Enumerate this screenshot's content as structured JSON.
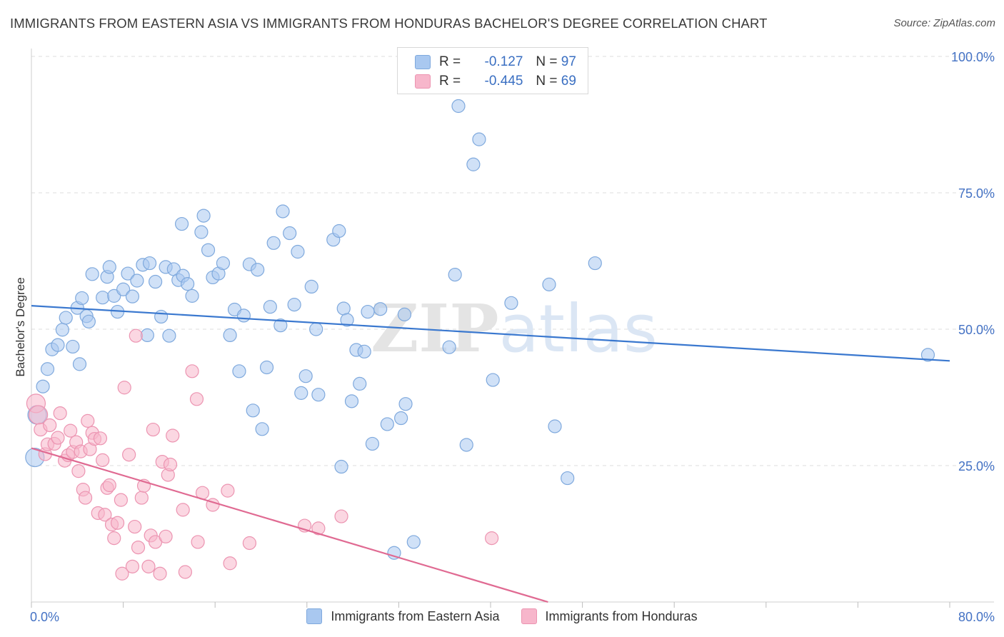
{
  "title": "IMMIGRANTS FROM EASTERN ASIA VS IMMIGRANTS FROM HONDURAS BACHELOR'S DEGREE CORRELATION CHART",
  "source": "Source: ZipAtlas.com",
  "watermark": "ZIPatlas",
  "legend_top": [
    {
      "r_label": "R =",
      "r_value": "-0.127",
      "n_label": "N =",
      "n_value": "97",
      "color": "#a9c8f0"
    },
    {
      "r_label": "R =",
      "r_value": "-0.445",
      "n_label": "N =",
      "n_value": "69",
      "color": "#f7b6cb"
    }
  ],
  "chart_data": {
    "type": "scatter",
    "ylabel": "Bachelor's Degree",
    "x_tick_labels": [
      "0.0%",
      "80.0%"
    ],
    "y_tick_labels": [
      "100.0%",
      "75.0%",
      "50.0%",
      "25.0%"
    ],
    "xlim": [
      0,
      80
    ],
    "ylim": [
      0,
      100
    ],
    "grid": "horizontal dashed",
    "series": [
      {
        "name": "Immigrants from Eastern Asia",
        "color": "#a9c8f0",
        "stroke": "#7fa9dd",
        "trend_color": "#3a78cf",
        "trend": {
          "x": [
            0,
            80
          ],
          "y": [
            54.3,
            44.2
          ]
        },
        "points": [
          [
            0.3,
            26.5
          ],
          [
            0.5,
            34.3
          ],
          [
            1.0,
            39.5
          ],
          [
            1.4,
            42.7
          ],
          [
            1.8,
            46.3
          ],
          [
            2.3,
            47.1
          ],
          [
            2.7,
            49.9
          ],
          [
            3.0,
            52.1
          ],
          [
            3.6,
            46.8
          ],
          [
            4.0,
            53.9
          ],
          [
            4.2,
            43.6
          ],
          [
            4.4,
            55.7
          ],
          [
            4.8,
            52.4
          ],
          [
            5.0,
            51.4
          ],
          [
            5.3,
            60.1
          ],
          [
            6.2,
            55.8
          ],
          [
            6.6,
            59.6
          ],
          [
            6.8,
            61.4
          ],
          [
            7.2,
            56.1
          ],
          [
            7.5,
            53.2
          ],
          [
            8.0,
            57.3
          ],
          [
            8.4,
            60.2
          ],
          [
            8.8,
            56.0
          ],
          [
            9.2,
            58.9
          ],
          [
            9.7,
            61.8
          ],
          [
            10.1,
            48.9
          ],
          [
            10.3,
            62.1
          ],
          [
            10.8,
            58.7
          ],
          [
            11.3,
            52.3
          ],
          [
            11.7,
            61.4
          ],
          [
            12.0,
            48.8
          ],
          [
            12.4,
            61.0
          ],
          [
            12.8,
            59.0
          ],
          [
            13.2,
            59.8
          ],
          [
            13.6,
            58.3
          ],
          [
            14.0,
            56.1
          ],
          [
            13.1,
            69.3
          ],
          [
            14.8,
            67.8
          ],
          [
            15.0,
            70.8
          ],
          [
            15.4,
            64.5
          ],
          [
            15.8,
            59.5
          ],
          [
            16.3,
            60.2
          ],
          [
            16.7,
            62.1
          ],
          [
            17.3,
            48.9
          ],
          [
            17.7,
            53.6
          ],
          [
            18.1,
            42.3
          ],
          [
            18.5,
            52.5
          ],
          [
            19.0,
            61.9
          ],
          [
            19.3,
            35.1
          ],
          [
            19.7,
            60.9
          ],
          [
            20.1,
            31.7
          ],
          [
            20.5,
            43.0
          ],
          [
            20.8,
            54.1
          ],
          [
            21.1,
            65.8
          ],
          [
            21.7,
            50.7
          ],
          [
            21.9,
            71.6
          ],
          [
            22.5,
            67.6
          ],
          [
            22.9,
            54.5
          ],
          [
            23.2,
            64.2
          ],
          [
            23.5,
            38.3
          ],
          [
            23.9,
            41.4
          ],
          [
            24.4,
            57.8
          ],
          [
            24.8,
            50.0
          ],
          [
            25.0,
            38.0
          ],
          [
            26.3,
            66.4
          ],
          [
            26.8,
            68.0
          ],
          [
            27.2,
            53.8
          ],
          [
            27.5,
            51.7
          ],
          [
            27.9,
            36.8
          ],
          [
            28.3,
            46.2
          ],
          [
            28.6,
            40.0
          ],
          [
            29.0,
            45.9
          ],
          [
            29.3,
            53.2
          ],
          [
            29.7,
            29.0
          ],
          [
            30.4,
            53.7
          ],
          [
            31.0,
            32.6
          ],
          [
            31.6,
            9.0
          ],
          [
            32.2,
            33.7
          ],
          [
            32.5,
            52.7
          ],
          [
            32.6,
            36.3
          ],
          [
            33.3,
            11.0
          ],
          [
            36.4,
            46.7
          ],
          [
            36.9,
            60.0
          ],
          [
            37.2,
            90.9
          ],
          [
            27.0,
            24.8
          ],
          [
            37.9,
            28.8
          ],
          [
            38.5,
            80.2
          ],
          [
            39.0,
            84.8
          ],
          [
            40.2,
            40.7
          ],
          [
            41.8,
            54.8
          ],
          [
            45.1,
            58.2
          ],
          [
            45.6,
            32.2
          ],
          [
            46.7,
            22.7
          ],
          [
            49.1,
            62.1
          ],
          [
            78.1,
            45.3
          ]
        ]
      },
      {
        "name": "Immigrants from Honduras",
        "color": "#f7b6cb",
        "stroke": "#ec94b1",
        "trend_color": "#e06a92",
        "trend": {
          "x": [
            0,
            45
          ],
          "y": [
            28.2,
            0
          ]
        },
        "points": [
          [
            0.4,
            36.4
          ],
          [
            0.6,
            34.3
          ],
          [
            0.8,
            31.6
          ],
          [
            1.2,
            27.1
          ],
          [
            1.4,
            28.9
          ],
          [
            1.6,
            32.4
          ],
          [
            2.0,
            29.0
          ],
          [
            2.3,
            30.1
          ],
          [
            2.5,
            34.6
          ],
          [
            2.9,
            25.9
          ],
          [
            3.2,
            26.9
          ],
          [
            3.4,
            31.4
          ],
          [
            3.6,
            27.5
          ],
          [
            3.9,
            29.3
          ],
          [
            4.1,
            24.0
          ],
          [
            4.3,
            27.6
          ],
          [
            4.5,
            20.6
          ],
          [
            4.7,
            19.1
          ],
          [
            4.9,
            33.2
          ],
          [
            5.1,
            28.0
          ],
          [
            5.3,
            31.0
          ],
          [
            5.5,
            29.9
          ],
          [
            5.8,
            16.3
          ],
          [
            6.0,
            30.0
          ],
          [
            6.2,
            26.0
          ],
          [
            6.4,
            16.0
          ],
          [
            6.6,
            20.9
          ],
          [
            6.8,
            21.4
          ],
          [
            7.0,
            14.2
          ],
          [
            7.2,
            11.7
          ],
          [
            7.5,
            14.5
          ],
          [
            7.8,
            18.7
          ],
          [
            7.9,
            5.2
          ],
          [
            8.1,
            39.3
          ],
          [
            8.5,
            27.0
          ],
          [
            8.8,
            6.5
          ],
          [
            9.1,
            48.8
          ],
          [
            9.0,
            13.8
          ],
          [
            9.3,
            10.0
          ],
          [
            9.6,
            19.1
          ],
          [
            9.8,
            21.3
          ],
          [
            10.2,
            6.5
          ],
          [
            10.4,
            12.2
          ],
          [
            10.6,
            31.6
          ],
          [
            10.8,
            11.0
          ],
          [
            11.2,
            5.2
          ],
          [
            11.4,
            25.7
          ],
          [
            11.7,
            12.0
          ],
          [
            11.9,
            23.3
          ],
          [
            12.1,
            25.2
          ],
          [
            12.3,
            30.5
          ],
          [
            13.2,
            16.9
          ],
          [
            13.4,
            5.5
          ],
          [
            14.0,
            42.3
          ],
          [
            14.4,
            37.2
          ],
          [
            14.5,
            11.0
          ],
          [
            14.9,
            20.0
          ],
          [
            15.8,
            17.8
          ],
          [
            17.1,
            20.4
          ],
          [
            17.3,
            7.1
          ],
          [
            19.0,
            10.8
          ],
          [
            23.8,
            14.0
          ],
          [
            25.0,
            13.5
          ],
          [
            27.0,
            15.7
          ],
          [
            40.1,
            11.7
          ]
        ]
      }
    ]
  },
  "bottom_legend": [
    {
      "label": "Immigrants from Eastern Asia",
      "color": "#a9c8f0"
    },
    {
      "label": "Immigrants from Honduras",
      "color": "#f7b6cb"
    }
  ]
}
